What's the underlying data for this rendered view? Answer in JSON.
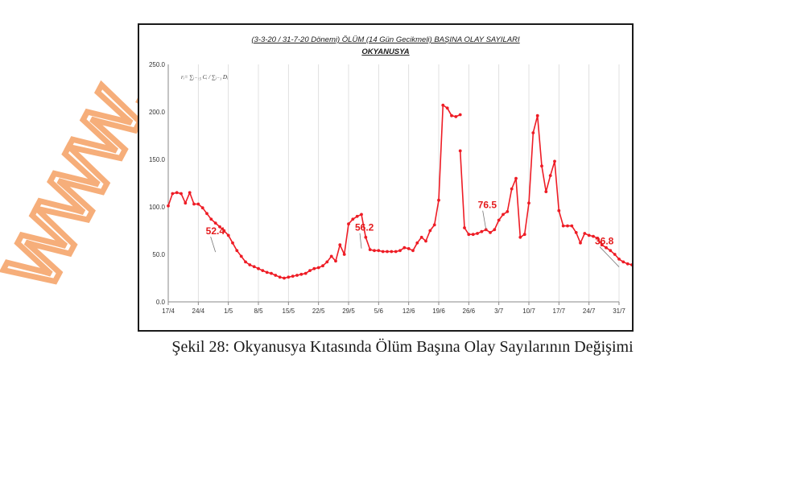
{
  "caption": "Şekil 28: Okyanusya Kıtasında Ölüm Başına Olay Sayılarının Değişimi",
  "watermark": "www.",
  "colors": {
    "series": "#ee1c25",
    "annotation": "#e41a1c",
    "watermark": "#f5a063",
    "grid": "#d9d9d9"
  },
  "chart_data": {
    "type": "line",
    "title_line1": "(3-3-20 / 31-7-20 Dönemi) ÖLÜM (14 Gün Gecikmeli) BAŞINA OLAY SAYILARI",
    "title_line2": "OKYANUSYA",
    "formula": "rᵢ= ∑ᵢ₋₁₅ Cᵢ / ∑ᵢ₋₁ Dᵢ",
    "xlabel": "",
    "ylabel": "",
    "ylim": [
      0,
      250
    ],
    "yticks": [
      "0.0",
      "50.0",
      "100.0",
      "150.0",
      "200.0",
      "250.0"
    ],
    "x_start": "17/4",
    "x_end": "31/7",
    "xticks": [
      "17/4",
      "24/4",
      "1/5",
      "8/5",
      "15/5",
      "22/5",
      "29/5",
      "5/6",
      "12/6",
      "19/6",
      "26/6",
      "3/7",
      "10/7",
      "17/7",
      "24/7",
      "31/7"
    ],
    "grid": "vertical",
    "series": [
      {
        "segments": [
          {
            "start": "17/4",
            "values": [
              101,
              114,
              115,
              114,
              104,
              115,
              103,
              103,
              99,
              93,
              87,
              83,
              79,
              75,
              70,
              62,
              54,
              48,
              42,
              39,
              37,
              35,
              33,
              31,
              30,
              28,
              26,
              25,
              26,
              27,
              28,
              29,
              30,
              33,
              35,
              36,
              38,
              42,
              48,
              43,
              60,
              50,
              82,
              87,
              90,
              92,
              68,
              55,
              54,
              54,
              53,
              53,
              53,
              53,
              54,
              57,
              56,
              54,
              62,
              68,
              64,
              75,
              81,
              107,
              207,
              204,
              196,
              195,
              197
            ]
          },
          {
            "start": "24/6",
            "values": [
              159,
              78,
              71,
              71,
              72,
              74,
              76,
              73,
              76,
              86,
              92,
              95,
              119,
              130,
              68,
              71,
              104,
              178,
              196,
              143,
              116,
              133,
              148,
              96,
              80,
              80,
              80,
              73,
              62,
              72,
              70,
              69,
              67,
              60,
              57,
              54,
              50,
              45,
              42,
              40,
              39,
              37
            ]
          }
        ]
      }
    ],
    "annotations": [
      {
        "label": "52.4",
        "date": "28/4",
        "value": 52.4
      },
      {
        "label": "56.2",
        "date": "1/6",
        "value": 56.2
      },
      {
        "label": "76.5",
        "date": "30/6",
        "value": 76.5
      },
      {
        "label": "36.8",
        "date": "31/7",
        "value": 36.8
      }
    ]
  }
}
